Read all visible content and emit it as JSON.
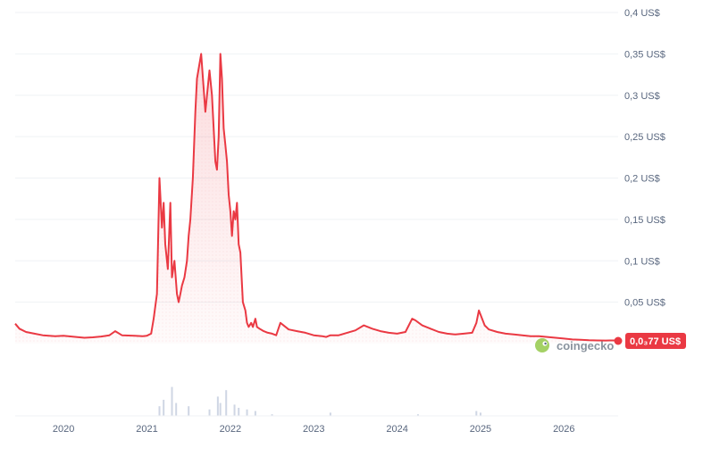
{
  "chart_data": {
    "type": "area",
    "title": "",
    "xlabel": "",
    "ylabel": "",
    "ylim": [
      0,
      0.4
    ],
    "y_ticks": [
      "0,4 US$",
      "0,35 US$",
      "0,3 US$",
      "0,25 US$",
      "0,2 US$",
      "0,15 US$",
      "0,1 US$",
      "0,05 US$"
    ],
    "y_tick_values": [
      0.4,
      0.35,
      0.3,
      0.25,
      0.2,
      0.15,
      0.1,
      0.05
    ],
    "x_ticks": [
      "2020",
      "2021",
      "2022",
      "2023",
      "2024",
      "2025",
      "2026"
    ],
    "x_tick_values": [
      2020.0,
      2021.0,
      2022.0,
      2023.0,
      2024.0,
      2025.0,
      2026.0
    ],
    "xlim": [
      2019.42,
      2026.65
    ],
    "grid": true,
    "series": [
      {
        "x": [
          2019.42,
          2019.47,
          2019.55,
          2019.65,
          2019.75,
          2019.9,
          2020.0,
          2020.15,
          2020.25,
          2020.35,
          2020.45,
          2020.55,
          2020.62,
          2020.7,
          2020.85,
          2020.95,
          2021.0,
          2021.05,
          2021.08,
          2021.12,
          2021.15,
          2021.18,
          2021.2,
          2021.22,
          2021.25,
          2021.28,
          2021.3,
          2021.33,
          2021.36,
          2021.38,
          2021.4,
          2021.42,
          2021.45,
          2021.48,
          2021.5,
          2021.52,
          2021.55,
          2021.58,
          2021.6,
          2021.65,
          2021.7,
          2021.75,
          2021.78,
          2021.8,
          2021.82,
          2021.84,
          2021.86,
          2021.88,
          2021.9,
          2021.92,
          2021.94,
          2021.96,
          2021.98,
          2022.0,
          2022.02,
          2022.04,
          2022.06,
          2022.08,
          2022.1,
          2022.12,
          2022.15,
          2022.18,
          2022.2,
          2022.22,
          2022.25,
          2022.27,
          2022.3,
          2022.32,
          2022.35,
          2022.4,
          2022.45,
          2022.5,
          2022.55,
          2022.6,
          2022.7,
          2022.8,
          2022.9,
          2023.0,
          2023.1,
          2023.15,
          2023.2,
          2023.3,
          2023.4,
          2023.5,
          2023.6,
          2023.7,
          2023.8,
          2023.9,
          2024.0,
          2024.1,
          2024.18,
          2024.22,
          2024.3,
          2024.4,
          2024.5,
          2024.6,
          2024.7,
          2024.8,
          2024.9,
          2024.95,
          2024.98,
          2025.05,
          2025.1,
          2025.2,
          2025.3,
          2025.4,
          2025.5,
          2025.6,
          2025.7,
          2025.8,
          2025.9,
          2026.0,
          2026.1,
          2026.2,
          2026.3,
          2026.4,
          2026.5,
          2026.55,
          2026.65
        ],
        "y": [
          0.024,
          0.018,
          0.014,
          0.012,
          0.01,
          0.009,
          0.0095,
          0.008,
          0.007,
          0.0075,
          0.0085,
          0.01,
          0.015,
          0.01,
          0.0095,
          0.009,
          0.0095,
          0.012,
          0.03,
          0.06,
          0.2,
          0.14,
          0.17,
          0.12,
          0.09,
          0.17,
          0.08,
          0.1,
          0.06,
          0.05,
          0.06,
          0.07,
          0.08,
          0.1,
          0.13,
          0.15,
          0.2,
          0.28,
          0.32,
          0.35,
          0.28,
          0.33,
          0.3,
          0.26,
          0.22,
          0.21,
          0.25,
          0.35,
          0.32,
          0.26,
          0.24,
          0.22,
          0.18,
          0.16,
          0.13,
          0.16,
          0.15,
          0.17,
          0.12,
          0.11,
          0.05,
          0.04,
          0.025,
          0.02,
          0.025,
          0.02,
          0.03,
          0.02,
          0.018,
          0.015,
          0.013,
          0.012,
          0.01,
          0.025,
          0.017,
          0.015,
          0.013,
          0.01,
          0.009,
          0.008,
          0.01,
          0.01,
          0.013,
          0.016,
          0.022,
          0.018,
          0.015,
          0.013,
          0.012,
          0.014,
          0.03,
          0.028,
          0.022,
          0.018,
          0.014,
          0.012,
          0.011,
          0.012,
          0.013,
          0.025,
          0.04,
          0.022,
          0.017,
          0.014,
          0.012,
          0.011,
          0.01,
          0.009,
          0.009,
          0.008,
          0.007,
          0.006,
          0.005,
          0.0045,
          0.004,
          0.0038,
          0.0037,
          0.00377,
          0.00377
        ]
      }
    ],
    "volume_x": [
      2021.15,
      2021.2,
      2021.3,
      2021.35,
      2021.5,
      2021.75,
      2021.85,
      2021.88,
      2021.95,
      2022.05,
      2022.1,
      2022.2,
      2022.3,
      2022.5,
      2023.2,
      2024.25,
      2024.95,
      2025.0
    ],
    "volume": [
      0.3,
      0.5,
      0.9,
      0.4,
      0.3,
      0.2,
      0.6,
      0.4,
      0.8,
      0.35,
      0.25,
      0.2,
      0.15,
      0.05,
      0.1,
      0.05,
      0.15,
      0.1
    ],
    "current_price_label": "0,0₃77 US$",
    "line_color": "#ea3943",
    "fill_color": "#ea3943",
    "volume_color": "#cfd6e4"
  },
  "watermark": {
    "text": "coingecko",
    "icon": "gecko-logo-icon"
  }
}
